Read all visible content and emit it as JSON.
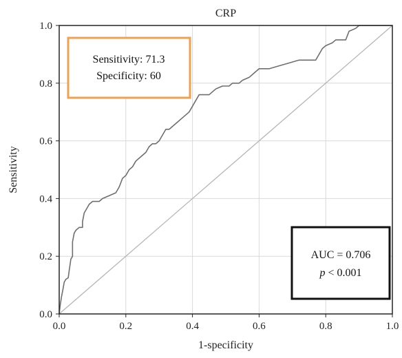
{
  "chart_data": {
    "type": "line",
    "title": "CRP",
    "xlabel": "1-specificity",
    "ylabel": "Sensitivity",
    "xlim": [
      0,
      1
    ],
    "ylim": [
      0,
      1
    ],
    "xticks": [
      "0.0",
      "0.2",
      "0.4",
      "0.6",
      "0.8",
      "1.0"
    ],
    "yticks": [
      "0.0",
      "0.2",
      "0.4",
      "0.6",
      "0.8",
      "1.0"
    ],
    "grid": true,
    "series": [
      {
        "color": "#6e6e6e",
        "points": [
          [
            0.0,
            0.0
          ],
          [
            0.003,
            0.03
          ],
          [
            0.007,
            0.06
          ],
          [
            0.012,
            0.09
          ],
          [
            0.015,
            0.11
          ],
          [
            0.02,
            0.12
          ],
          [
            0.027,
            0.125
          ],
          [
            0.03,
            0.15
          ],
          [
            0.035,
            0.19
          ],
          [
            0.04,
            0.2
          ],
          [
            0.04,
            0.25
          ],
          [
            0.045,
            0.28
          ],
          [
            0.05,
            0.29
          ],
          [
            0.06,
            0.3
          ],
          [
            0.07,
            0.3
          ],
          [
            0.07,
            0.32
          ],
          [
            0.075,
            0.35
          ],
          [
            0.085,
            0.37
          ],
          [
            0.09,
            0.38
          ],
          [
            0.1,
            0.39
          ],
          [
            0.12,
            0.39
          ],
          [
            0.13,
            0.4
          ],
          [
            0.15,
            0.41
          ],
          [
            0.17,
            0.42
          ],
          [
            0.18,
            0.44
          ],
          [
            0.19,
            0.47
          ],
          [
            0.2,
            0.48
          ],
          [
            0.21,
            0.5
          ],
          [
            0.22,
            0.51
          ],
          [
            0.23,
            0.53
          ],
          [
            0.24,
            0.54
          ],
          [
            0.26,
            0.56
          ],
          [
            0.27,
            0.58
          ],
          [
            0.28,
            0.59
          ],
          [
            0.29,
            0.59
          ],
          [
            0.3,
            0.6
          ],
          [
            0.31,
            0.62
          ],
          [
            0.32,
            0.64
          ],
          [
            0.33,
            0.64
          ],
          [
            0.34,
            0.65
          ],
          [
            0.35,
            0.66
          ],
          [
            0.37,
            0.68
          ],
          [
            0.39,
            0.7
          ],
          [
            0.4,
            0.72
          ],
          [
            0.41,
            0.74
          ],
          [
            0.42,
            0.76
          ],
          [
            0.45,
            0.76
          ],
          [
            0.47,
            0.78
          ],
          [
            0.49,
            0.79
          ],
          [
            0.51,
            0.79
          ],
          [
            0.52,
            0.8
          ],
          [
            0.54,
            0.8
          ],
          [
            0.55,
            0.81
          ],
          [
            0.57,
            0.82
          ],
          [
            0.58,
            0.83
          ],
          [
            0.59,
            0.84
          ],
          [
            0.6,
            0.85
          ],
          [
            0.63,
            0.85
          ],
          [
            0.66,
            0.86
          ],
          [
            0.69,
            0.87
          ],
          [
            0.72,
            0.88
          ],
          [
            0.77,
            0.88
          ],
          [
            0.78,
            0.9
          ],
          [
            0.79,
            0.92
          ],
          [
            0.8,
            0.93
          ],
          [
            0.82,
            0.94
          ],
          [
            0.83,
            0.95
          ],
          [
            0.86,
            0.95
          ],
          [
            0.87,
            0.98
          ],
          [
            0.89,
            0.99
          ],
          [
            0.9,
            1.0
          ],
          [
            1.0,
            1.0
          ]
        ]
      },
      {
        "color": "#b5b5b5",
        "points": [
          [
            0,
            0
          ],
          [
            1,
            1
          ]
        ]
      }
    ],
    "annotations": {
      "sens_spec": {
        "line1": "Sensitivity: 71.3",
        "line2": "Specificity: 60",
        "border_color": "#f0a050"
      },
      "auc": {
        "line1": "AUC = 0.706",
        "line2_italic": "p",
        "line2_rest": " < 0.001",
        "border_color": "#111111"
      }
    }
  }
}
